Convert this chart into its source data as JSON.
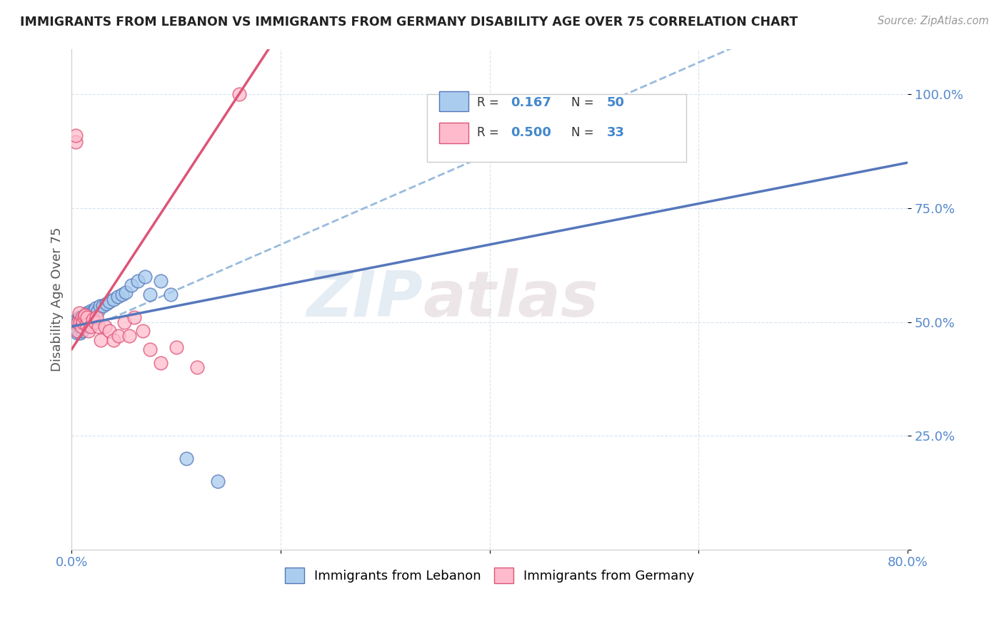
{
  "title": "IMMIGRANTS FROM LEBANON VS IMMIGRANTS FROM GERMANY DISABILITY AGE OVER 75 CORRELATION CHART",
  "source": "Source: ZipAtlas.com",
  "xlabel": "",
  "ylabel": "Disability Age Over 75",
  "legend_label1": "Immigrants from Lebanon",
  "legend_label2": "Immigrants from Germany",
  "R1": "0.167",
  "N1": "50",
  "R2": "0.500",
  "N2": "33",
  "xmin": 0.0,
  "xmax": 0.8,
  "ymin": 0.0,
  "ymax": 1.1,
  "color_blue": "#aaccee",
  "color_pink": "#ffbbcc",
  "line_blue": "#5577bb",
  "line_pink": "#dd5577",
  "line_dashed": "#99bbdd",
  "watermark_zip": "ZIP",
  "watermark_atlas": "atlas",
  "lebanon_x": [
    0.005,
    0.005,
    0.005,
    0.005,
    0.006,
    0.006,
    0.007,
    0.007,
    0.008,
    0.008,
    0.008,
    0.009,
    0.009,
    0.01,
    0.01,
    0.01,
    0.01,
    0.011,
    0.011,
    0.012,
    0.012,
    0.013,
    0.013,
    0.014,
    0.014,
    0.015,
    0.016,
    0.017,
    0.018,
    0.019,
    0.02,
    0.021,
    0.023,
    0.025,
    0.027,
    0.03,
    0.033,
    0.036,
    0.04,
    0.044,
    0.048,
    0.052,
    0.057,
    0.063,
    0.07,
    0.075,
    0.085,
    0.095,
    0.11,
    0.14
  ],
  "lebanon_y": [
    0.475,
    0.49,
    0.5,
    0.505,
    0.48,
    0.5,
    0.49,
    0.51,
    0.475,
    0.5,
    0.51,
    0.49,
    0.505,
    0.48,
    0.49,
    0.5,
    0.51,
    0.49,
    0.51,
    0.495,
    0.51,
    0.495,
    0.515,
    0.5,
    0.52,
    0.505,
    0.515,
    0.51,
    0.525,
    0.52,
    0.515,
    0.525,
    0.53,
    0.525,
    0.535,
    0.535,
    0.54,
    0.545,
    0.55,
    0.555,
    0.56,
    0.565,
    0.58,
    0.59,
    0.6,
    0.56,
    0.59,
    0.56,
    0.2,
    0.15
  ],
  "germany_x": [
    0.004,
    0.004,
    0.005,
    0.006,
    0.007,
    0.008,
    0.009,
    0.01,
    0.011,
    0.012,
    0.013,
    0.014,
    0.015,
    0.016,
    0.018,
    0.02,
    0.022,
    0.024,
    0.026,
    0.028,
    0.032,
    0.036,
    0.04,
    0.045,
    0.05,
    0.055,
    0.06,
    0.068,
    0.075,
    0.085,
    0.1,
    0.12,
    0.16
  ],
  "germany_y": [
    0.895,
    0.91,
    0.48,
    0.5,
    0.52,
    0.5,
    0.49,
    0.51,
    0.5,
    0.51,
    0.515,
    0.495,
    0.51,
    0.48,
    0.49,
    0.505,
    0.5,
    0.51,
    0.49,
    0.46,
    0.49,
    0.48,
    0.46,
    0.47,
    0.5,
    0.47,
    0.51,
    0.48,
    0.44,
    0.41,
    0.445,
    0.4,
    1.0
  ]
}
